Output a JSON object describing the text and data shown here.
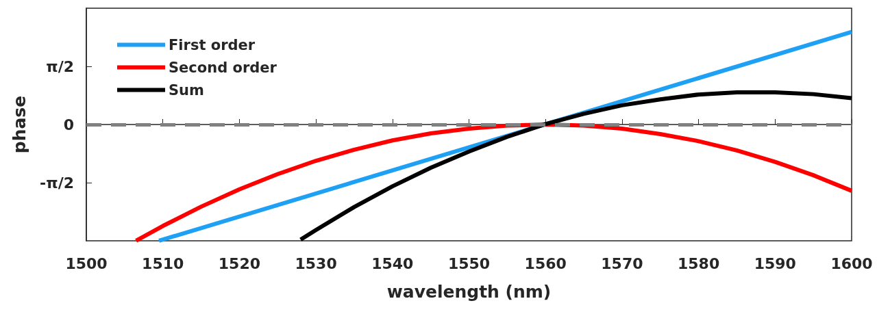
{
  "chart_data": {
    "type": "line",
    "xlabel": "wavelength (nm)",
    "ylabel": "phase",
    "xlim": [
      1500,
      1600
    ],
    "xticks": [
      1500,
      1510,
      1520,
      1530,
      1540,
      1550,
      1560,
      1570,
      1580,
      1590,
      1600
    ],
    "ylim": [
      -3.1416,
      3.1416
    ],
    "yticks": [
      {
        "value": -1.5708,
        "label": "-π/2"
      },
      0,
      {
        "value": 1.5708,
        "label": "π/2"
      }
    ],
    "grid": false,
    "legend": "top left",
    "marker": "none",
    "line_style": "solid",
    "ref_lines": [
      {
        "axis": "y",
        "value": 0,
        "label": null,
        "color": "#808080",
        "line_style": "dashed"
      }
    ],
    "series": [
      {
        "name": "First order",
        "color": "#1ea0f5",
        "x": [
          1509.5,
          1600
        ],
        "values": [
          -3.14,
          2.5
        ]
      },
      {
        "name": "Second order",
        "color": "#ff0000",
        "x": [
          1506.5,
          1510,
          1515,
          1520,
          1525,
          1530,
          1535,
          1540,
          1545,
          1550,
          1555,
          1560,
          1565,
          1570,
          1575,
          1580,
          1585,
          1590,
          1595,
          1600
        ],
        "values": [
          -3.14,
          -2.74,
          -2.22,
          -1.75,
          -1.34,
          -0.98,
          -0.68,
          -0.43,
          -0.24,
          -0.11,
          -0.03,
          0,
          -0.03,
          -0.11,
          -0.26,
          -0.45,
          -0.7,
          -1.01,
          -1.37,
          -1.79
        ]
      },
      {
        "name": "Sum",
        "color": "#000000",
        "x": [
          1528,
          1530,
          1535,
          1540,
          1545,
          1550,
          1555,
          1560,
          1565,
          1570,
          1575,
          1580,
          1585,
          1590,
          1595,
          1600
        ],
        "values": [
          -3.11,
          -2.85,
          -2.23,
          -1.67,
          -1.17,
          -0.73,
          -0.33,
          0.01,
          0.29,
          0.52,
          0.68,
          0.81,
          0.87,
          0.87,
          0.82,
          0.71
        ]
      }
    ]
  }
}
